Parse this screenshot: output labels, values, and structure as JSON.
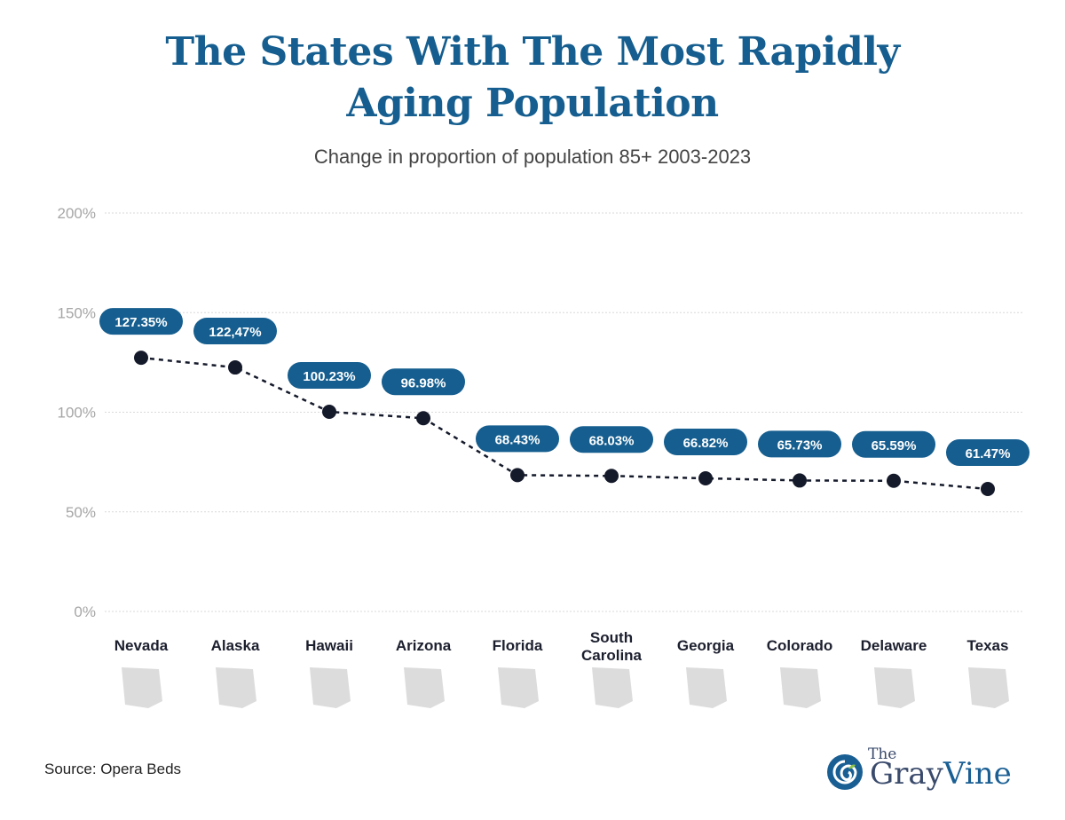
{
  "header": {
    "title_line1": "The States With The Most Rapidly",
    "title_line2": "Aging Population",
    "subtitle": "Change in proportion of population 85+ 2003-2023"
  },
  "footer": {
    "source": "Source: Opera Beds",
    "logo_the": "The",
    "logo_gray": "Gray",
    "logo_vine": "Vine"
  },
  "colors": {
    "title": "#155e8f",
    "label_bg": "#155e8f",
    "point": "#151a2b",
    "grid": "#d9d9d9",
    "tick": "#a6a6a6",
    "state_shape": "#dcdcdc"
  },
  "chart_data": {
    "type": "line",
    "title": "The States With The Most Rapidly Aging Population",
    "subtitle": "Change in proportion of population 85+ 2003-2023",
    "xlabel": "",
    "ylabel": "",
    "ylim": [
      0,
      200
    ],
    "yticks": [
      0,
      50,
      100,
      150,
      200
    ],
    "ytick_labels": [
      "0%",
      "50%",
      "100%",
      "150%",
      "200%"
    ],
    "grid": true,
    "line_style": "dotted",
    "categories": [
      "Nevada",
      "Alaska",
      "Hawaii",
      "Arizona",
      "Florida",
      "South Carolina",
      "Georgia",
      "Colorado",
      "Delaware",
      "Texas"
    ],
    "values": [
      127.35,
      122.47,
      100.23,
      96.98,
      68.43,
      68.03,
      66.82,
      65.73,
      65.59,
      61.47
    ],
    "data_labels": [
      "127.35%",
      "122,47%",
      "100.23%",
      "96.98%",
      "68.43%",
      "68.03%",
      "66.82%",
      "65.73%",
      "65.59%",
      "61.47%"
    ]
  }
}
